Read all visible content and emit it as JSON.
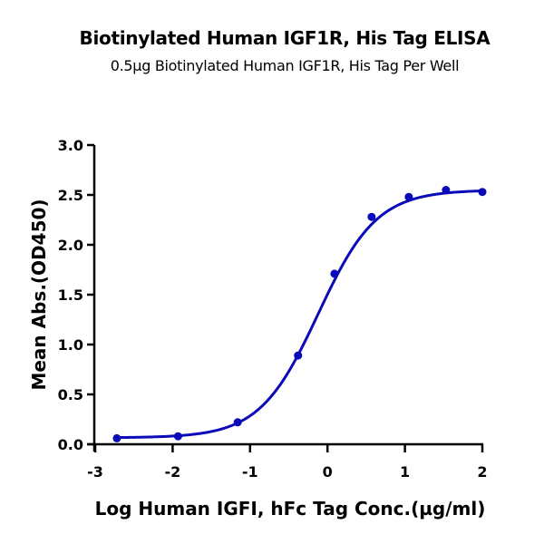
{
  "chart_data": {
    "type": "scatter",
    "title": "Biotinylated Human IGF1R, His Tag ELISA",
    "subtitle": "0.5µg Biotinylated Human IGF1R, His Tag Per Well",
    "xlabel": "Log Human IGFI, hFc Tag Conc.(µg/ml)",
    "ylabel": "Mean Abs.(OD450)",
    "xlim": [
      -3,
      2
    ],
    "ylim": [
      0,
      3.0
    ],
    "x_ticks": [
      "-3",
      "-2",
      "-1",
      "0",
      "1",
      "2"
    ],
    "y_ticks": [
      "0.0",
      "0.5",
      "1.0",
      "1.5",
      "2.0",
      "2.5",
      "3.0"
    ],
    "grid": false,
    "legend": null,
    "fit": "4-parameter logistic curve",
    "series": [
      {
        "name": "Biotinylated Human IGF1R, His Tag",
        "color": "#0a0ab8",
        "x": [
          -2.72,
          -1.93,
          -1.16,
          -0.38,
          0.09,
          0.57,
          1.05,
          1.53,
          2.0
        ],
        "y": [
          0.06,
          0.08,
          0.22,
          0.89,
          1.71,
          2.28,
          2.48,
          2.55,
          2.53
        ]
      }
    ]
  }
}
